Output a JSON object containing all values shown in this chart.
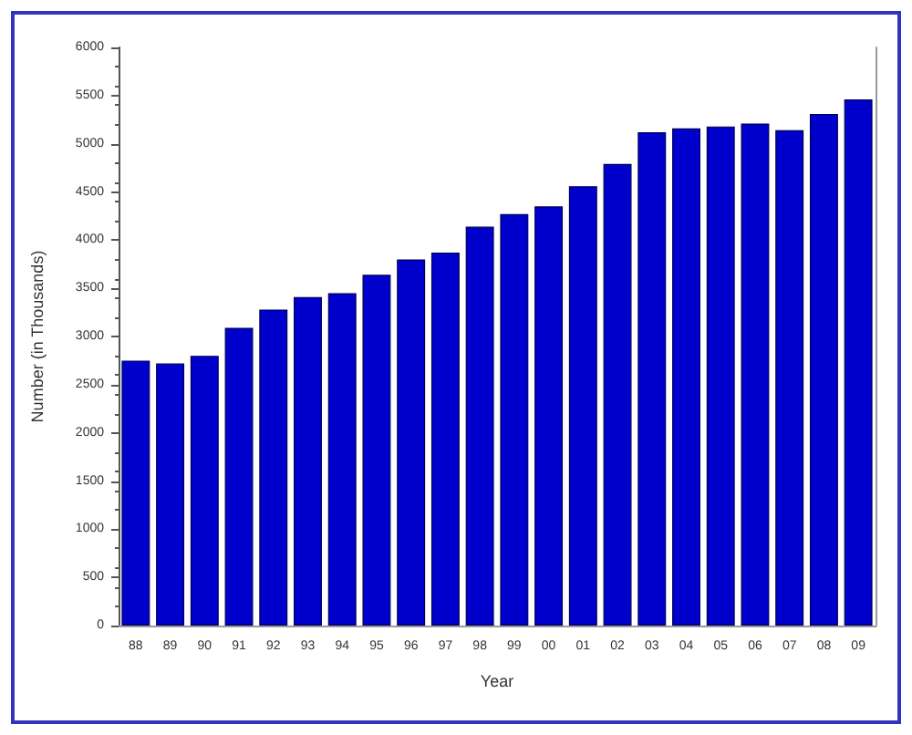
{
  "chart_data": {
    "type": "bar",
    "xlabel": "Year",
    "ylabel": "Number (in Thousands)",
    "categories": [
      "88",
      "89",
      "90",
      "91",
      "92",
      "93",
      "94",
      "95",
      "96",
      "97",
      "98",
      "99",
      "00",
      "01",
      "02",
      "03",
      "04",
      "05",
      "06",
      "07",
      "08",
      "09"
    ],
    "values": [
      2750,
      2720,
      2800,
      3090,
      3280,
      3410,
      3450,
      3640,
      3800,
      3870,
      4140,
      4270,
      4350,
      4560,
      4790,
      5120,
      5160,
      5180,
      5210,
      5140,
      5310,
      5460
    ],
    "color": "#0000cc",
    "ylim": [
      0,
      6000
    ],
    "yticks": [
      0,
      500,
      1000,
      1500,
      2000,
      2500,
      3000,
      3500,
      4000,
      4500,
      5000,
      5500,
      6000
    ],
    "grid": false
  }
}
